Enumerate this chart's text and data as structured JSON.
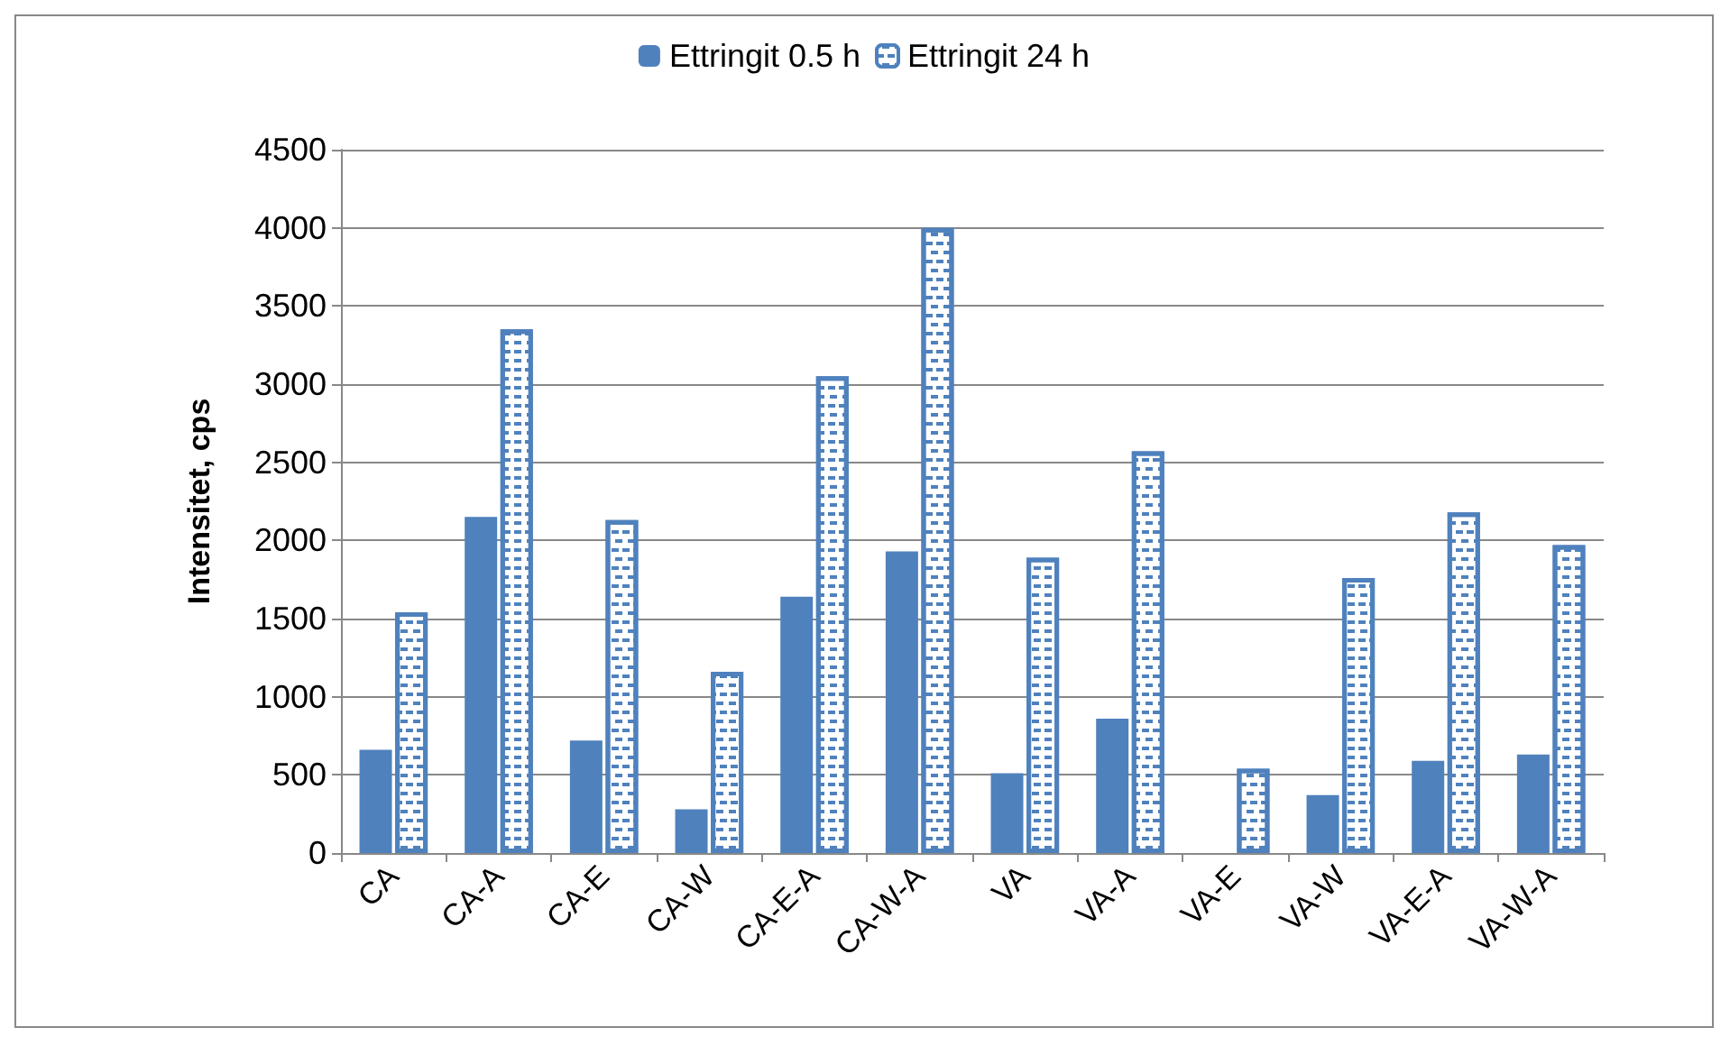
{
  "chart_data": {
    "type": "bar",
    "ylabel": "Intensitet, cps",
    "categories": [
      "CA",
      "CA-A",
      "CA-E",
      "CA-W",
      "CA-E-A",
      "CA-W-A",
      "VA",
      "VA-A",
      "VA-E",
      "VA-W",
      "VA-E-A",
      "VA-W-A"
    ],
    "series": [
      {
        "name": "Ettringit 0.5 h",
        "color": "#4f81bd",
        "values": [
          660,
          2150,
          720,
          280,
          1640,
          1930,
          510,
          860,
          0,
          370,
          590,
          630
        ]
      },
      {
        "name": "Ettringit 24 h",
        "color": "#4f81bd",
        "values": [
          1540,
          3350,
          2130,
          1160,
          3050,
          4000,
          1890,
          2570,
          540,
          1760,
          2180,
          1970
        ]
      }
    ],
    "ylim": [
      0,
      4500
    ],
    "yticks": [
      0,
      500,
      1000,
      1500,
      2000,
      2500,
      3000,
      3500,
      4000,
      4500
    ],
    "grid": "y",
    "legend": "top"
  }
}
